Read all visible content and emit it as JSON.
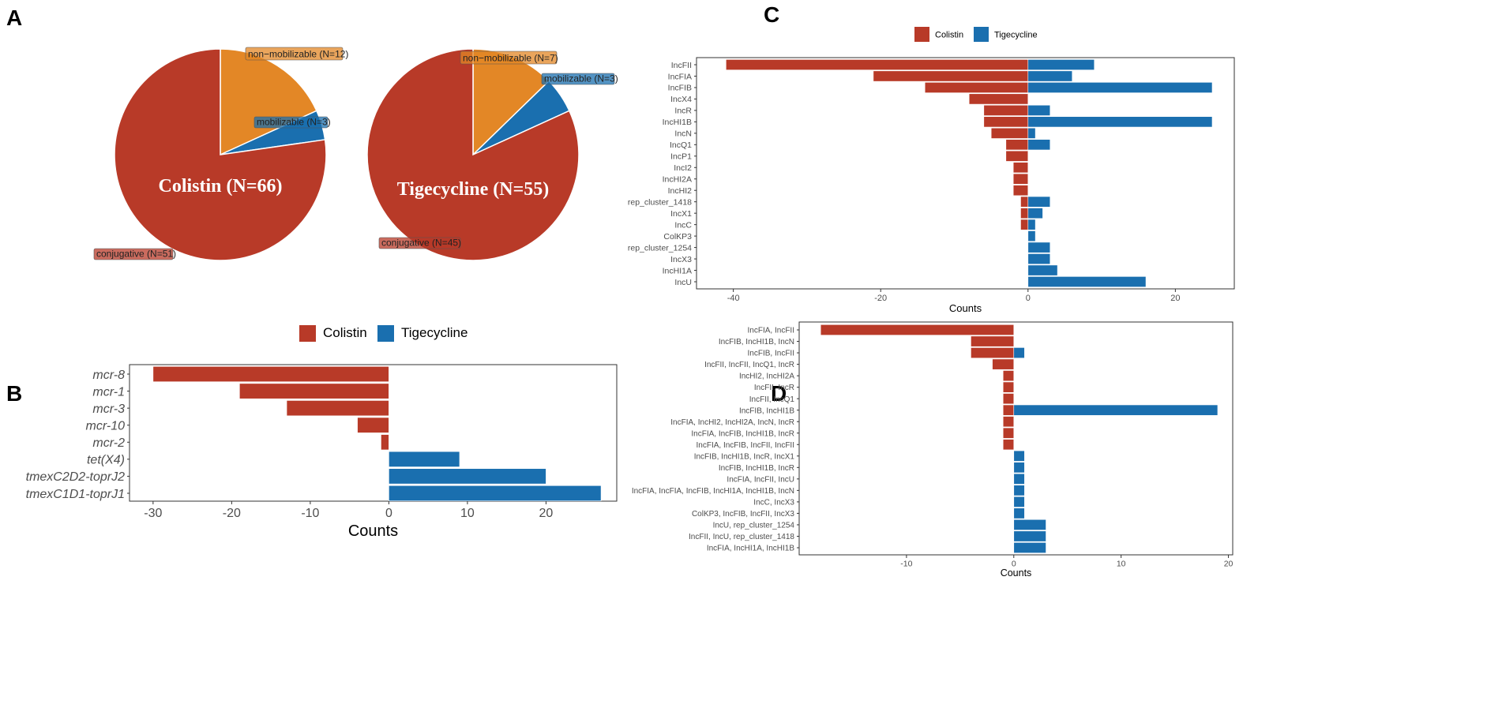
{
  "panels": {
    "A": "A",
    "B": "B",
    "C": "C",
    "D": "D"
  },
  "colors": {
    "colistin": "#b83a28",
    "tigecycline": "#1a6faf",
    "nonmob": "#e38726",
    "mob": "#1a6faf"
  },
  "chart_data": [
    {
      "panel": "A",
      "type": "pie",
      "title": "Colistin (N=66)",
      "slices": [
        {
          "label": "non−mobilizable (N=12)",
          "value": 12,
          "color": "#e38726"
        },
        {
          "label": "mobilizable (N=3)",
          "value": 3,
          "color": "#1a6faf"
        },
        {
          "label": "conjugative (N=51)",
          "value": 51,
          "color": "#b83a28"
        }
      ]
    },
    {
      "panel": "A",
      "type": "pie",
      "title": "Tigecycline (N=55)",
      "slices": [
        {
          "label": "non−mobilizable (N=7)",
          "value": 7,
          "color": "#e38726"
        },
        {
          "label": "mobilizable (N=3)",
          "value": 3,
          "color": "#1a6faf"
        },
        {
          "label": "conjugative (N=45)",
          "value": 45,
          "color": "#b83a28"
        }
      ]
    },
    {
      "panel": "B",
      "type": "bar",
      "orientation": "horizontal",
      "xlabel": "Counts",
      "xlim": [
        -33,
        29
      ],
      "xticks": [
        -30,
        -20,
        -10,
        0,
        10,
        20
      ],
      "legend": [
        "Colistin",
        "Tigecycline"
      ],
      "categories": [
        "mcr-8",
        "mcr-1",
        "mcr-3",
        "mcr-10",
        "mcr-2",
        "tet(X4)",
        "tmexC2D2-toprJ2",
        "tmexC1D1-toprJ1"
      ],
      "series": [
        {
          "name": "Colistin",
          "values": [
            -30,
            -19,
            -13,
            -4,
            -1,
            0,
            0,
            0
          ]
        },
        {
          "name": "Tigecycline",
          "values": [
            0,
            0,
            0,
            0,
            0,
            9,
            20,
            27
          ]
        }
      ]
    },
    {
      "panel": "C",
      "type": "bar",
      "orientation": "horizontal",
      "xlabel": "Counts",
      "xlim": [
        -45,
        28
      ],
      "xticks": [
        -40,
        -20,
        0,
        20
      ],
      "legend": [
        "Colistin",
        "Tigecycline"
      ],
      "categories": [
        "IncFII",
        "IncFIA",
        "IncFIB",
        "IncX4",
        "IncR",
        "IncHI1B",
        "IncN",
        "IncQ1",
        "IncP1",
        "IncI2",
        "IncHI2A",
        "IncHI2",
        "rep_cluster_1418",
        "IncX1",
        "IncC",
        "ColKP3",
        "rep_cluster_1254",
        "IncX3",
        "IncHI1A",
        "IncU"
      ],
      "series": [
        {
          "name": "Colistin",
          "values": [
            -41,
            -21,
            -14,
            -8,
            -6,
            -6,
            -5,
            -3,
            -3,
            -2,
            -2,
            -2,
            -1,
            -1,
            -1,
            0,
            0,
            0,
            0,
            0
          ]
        },
        {
          "name": "Tigecycline",
          "values": [
            9,
            6,
            25,
            0,
            3,
            25,
            1,
            3,
            0,
            0,
            0,
            0,
            3,
            2,
            1,
            1,
            3,
            3,
            4,
            16
          ]
        }
      ]
    },
    {
      "panel": "D",
      "type": "bar",
      "orientation": "horizontal",
      "xlabel": "Counts",
      "xlim": [
        -20,
        20.4
      ],
      "xticks": [
        -10,
        0,
        10,
        20
      ],
      "categories": [
        "IncFIA, IncFII",
        "IncFIB, IncHI1B, IncN",
        "IncFIB, IncFII",
        "IncFII, IncFII, IncQ1, IncR",
        "IncHI2, IncHI2A",
        "IncFII, IncR",
        "IncFII, IncQ1",
        "IncFIB, IncHI1B",
        "IncFIA, IncHI2, IncHI2A, IncN, IncR",
        "IncFIA, IncFIB, IncHI1B, IncR",
        "IncFIA, IncFIB, IncFII, IncFII",
        "IncFIB, IncHI1B, IncR, IncX1",
        "IncFIB, IncHI1B, IncR",
        "IncFIA, IncFII, IncU",
        "IncFIA, IncFIA, IncFIB, IncHI1A, IncHI1B, IncN",
        "IncC, IncX3",
        "ColKP3, IncFIB, IncFII, IncX3",
        "IncU, rep_cluster_1254",
        "IncFII, IncU, rep_cluster_1418",
        "IncFIA, IncHI1A, IncHI1B"
      ],
      "series": [
        {
          "name": "Colistin",
          "values": [
            -18,
            -4,
            -4,
            -2,
            -1,
            -1,
            -1,
            -1,
            -1,
            -1,
            -1,
            0,
            0,
            0,
            0,
            0,
            0,
            0,
            0,
            0
          ]
        },
        {
          "name": "Tigecycline",
          "values": [
            0,
            0,
            1,
            0,
            0,
            0,
            0,
            19,
            0,
            0,
            0,
            1,
            1,
            1,
            1,
            1,
            1,
            3,
            3,
            3
          ]
        }
      ]
    }
  ]
}
